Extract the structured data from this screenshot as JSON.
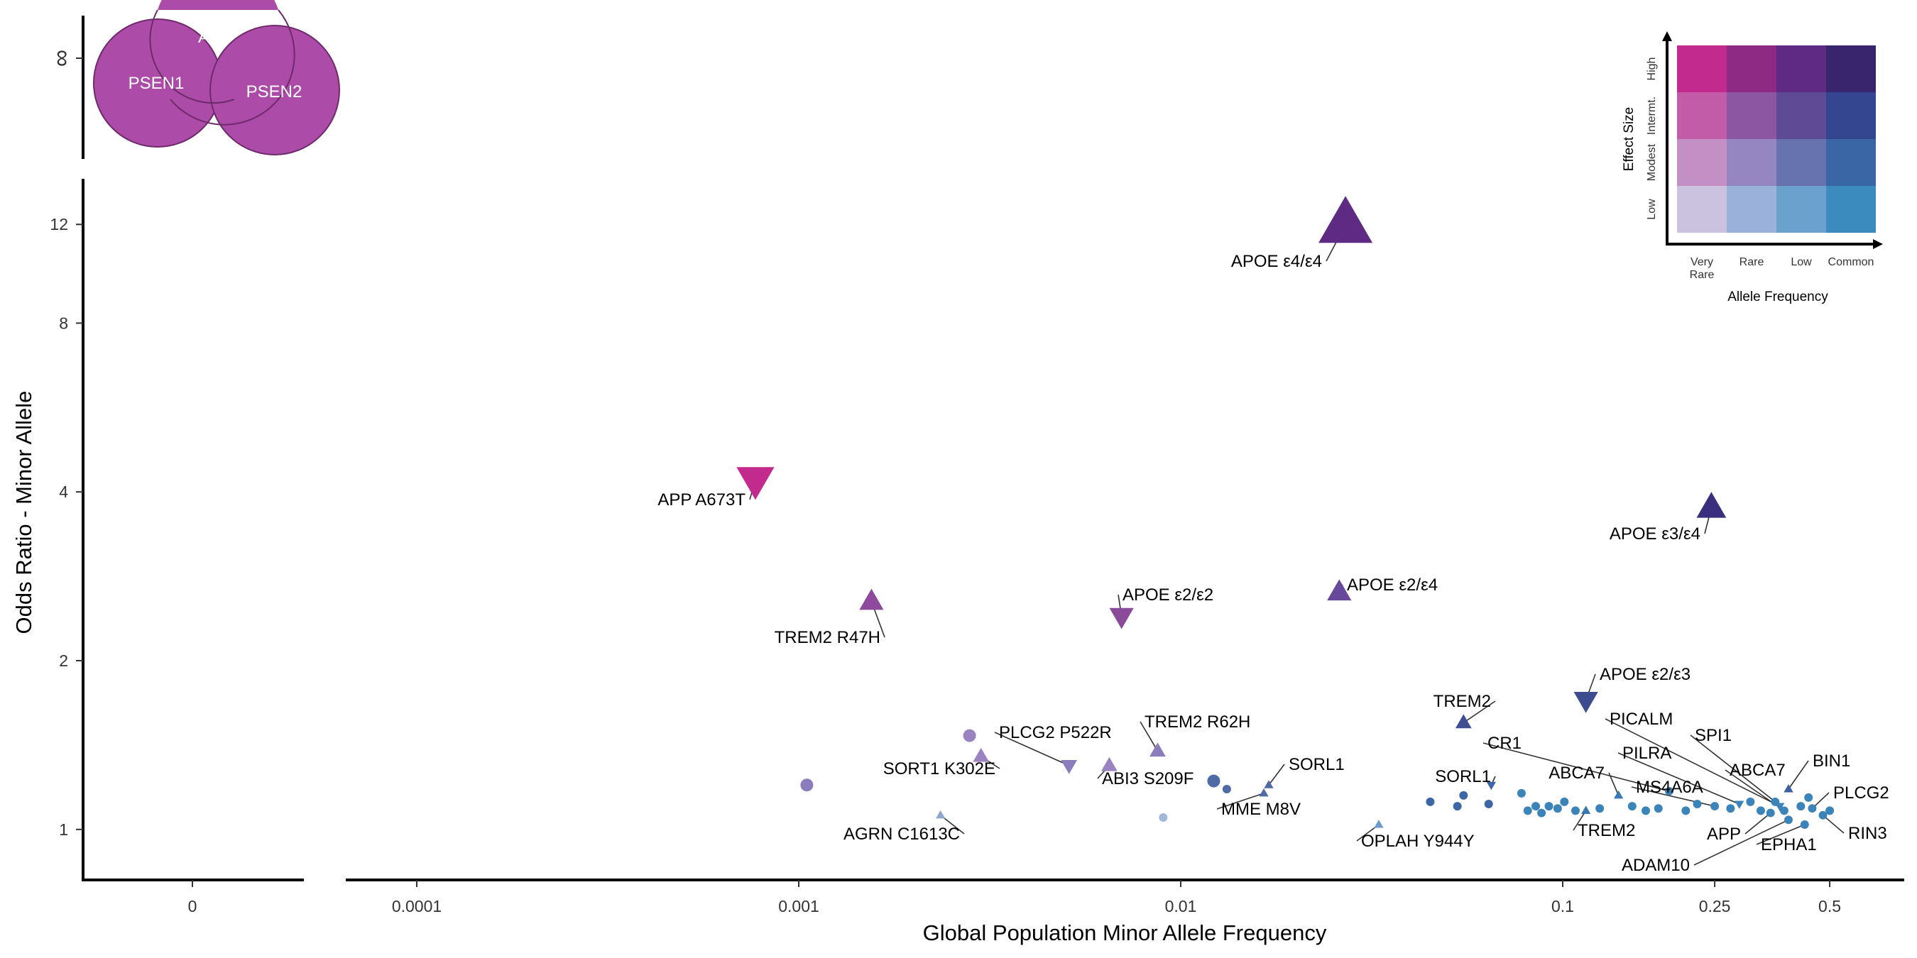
{
  "chart_data": {
    "type": "scatter",
    "xlabel": "Global Population Minor Allele Frequency",
    "ylabel": "Odds Ratio - Minor Allele",
    "x_scale": "log",
    "y_scale": "log",
    "x_zero_panel_tick": "0",
    "y_infinity_panel_tick": "∞",
    "xlim": [
      5e-05,
      0.65
    ],
    "ylim": [
      0.85,
      14
    ],
    "x_ticks": [
      {
        "value": 0.0001,
        "label": "0.0001"
      },
      {
        "value": 0.001,
        "label": "0.001"
      },
      {
        "value": 0.01,
        "label": "0.01"
      },
      {
        "value": 0.1,
        "label": "0.1"
      },
      {
        "value": 0.25,
        "label": "0.25"
      },
      {
        "value": 0.5,
        "label": "0.5"
      }
    ],
    "y_ticks": [
      {
        "value": 1,
        "label": "1"
      },
      {
        "value": 2,
        "label": "2"
      },
      {
        "value": 4,
        "label": "4"
      },
      {
        "value": 8,
        "label": "8"
      },
      {
        "value": 12,
        "label": "12"
      }
    ],
    "deterministic_genes": {
      "y": "∞",
      "x": "0",
      "genes": [
        "APP",
        "PSEN1",
        "PSEN2"
      ],
      "color": "#ac4ca8"
    },
    "labeled_points": [
      {
        "label": "APOE ε4/ε4",
        "x": 0.027,
        "y": 12.0,
        "shape": "triangle-up",
        "color": "#5e2a84",
        "size": 7
      },
      {
        "label": "APP A673T",
        "x": 0.00077,
        "y": 4.2,
        "shape": "triangle-down",
        "color": "#c22a8e",
        "size": 5
      },
      {
        "label": "APOE ε3/ε4",
        "x": 0.245,
        "y": 3.75,
        "shape": "triangle-up",
        "color": "#3a2f7e",
        "size": 4
      },
      {
        "label": "TREM2 R47H",
        "x": 0.00155,
        "y": 2.55,
        "shape": "triangle-up",
        "color": "#8e4b9e",
        "size": 3
      },
      {
        "label": "APOE ε2/ε2",
        "x": 0.007,
        "y": 2.4,
        "shape": "triangle-down",
        "color": "#8a4b9a",
        "size": 3
      },
      {
        "label": "APOE ε2/ε4",
        "x": 0.026,
        "y": 2.65,
        "shape": "triangle-up",
        "color": "#68489a",
        "size": 3
      },
      {
        "label": "APOE ε2/ε3",
        "x": 0.115,
        "y": 1.7,
        "shape": "triangle-down",
        "color": "#3d4c8f",
        "size": 3
      },
      {
        "label": "TREM2",
        "x": 0.055,
        "y": 1.55,
        "shape": "triangle-up",
        "color": "#3f4f93",
        "size": 2
      },
      {
        "label": "PLCG2 P522R",
        "x": 0.0051,
        "y": 1.3,
        "shape": "triangle-down",
        "color": "#8b7dbd",
        "size": 2
      },
      {
        "label": "TREM2 R62H",
        "x": 0.0087,
        "y": 1.38,
        "shape": "triangle-up",
        "color": "#8b7dbd",
        "size": 2
      },
      {
        "label": "SORT1 K302E",
        "x": 0.003,
        "y": 1.35,
        "shape": "triangle-up",
        "color": "#9b83c2",
        "size": 2
      },
      {
        "label": "ABI3 S209F",
        "x": 0.0065,
        "y": 1.3,
        "shape": "triangle-up",
        "color": "#9b83c2",
        "size": 2
      },
      {
        "label": "SORL1",
        "x": 0.017,
        "y": 1.2,
        "shape": "triangle-up",
        "color": "#4f6aa4",
        "size": 1
      },
      {
        "label": "MME M8V",
        "x": 0.0165,
        "y": 1.16,
        "shape": "triangle-up",
        "color": "#4f6aa4",
        "size": 1
      },
      {
        "label": "AGRN C1613C",
        "x": 0.00235,
        "y": 1.06,
        "shape": "triangle-up",
        "color": "#8fa7d0",
        "size": 1
      },
      {
        "label": "OPLAH Y944Y",
        "x": 0.033,
        "y": 1.02,
        "shape": "triangle-up",
        "color": "#6e9acb",
        "size": 1
      },
      {
        "label": "SORL1",
        "x": 0.065,
        "y": 1.2,
        "shape": "triangle-down",
        "color": "#3d66a6",
        "size": 1
      },
      {
        "label": "CR1",
        "x": 0.19,
        "y": 1.17,
        "shape": "circle",
        "color": "#3b84b9",
        "size": 1
      },
      {
        "label": "ABCA7",
        "x": 0.14,
        "y": 1.15,
        "shape": "triangle-up",
        "color": "#3a78b3",
        "size": 1
      },
      {
        "label": "TREM2",
        "x": 0.115,
        "y": 1.08,
        "shape": "triangle-up",
        "color": "#3a78b3",
        "size": 1
      },
      {
        "label": "MS4A6A",
        "x": 0.25,
        "y": 1.1,
        "shape": "circle",
        "color": "#3b84b9",
        "size": 1
      },
      {
        "label": "PICALM",
        "x": 0.37,
        "y": 1.1,
        "shape": "triangle-down",
        "color": "#3b84b9",
        "size": 1
      },
      {
        "label": "PILRA",
        "x": 0.29,
        "y": 1.11,
        "shape": "triangle-down",
        "color": "#3b84b9",
        "size": 1
      },
      {
        "label": "SPI1",
        "x": 0.36,
        "y": 1.12,
        "shape": "circle",
        "color": "#3b84b9",
        "size": 1
      },
      {
        "label": "ABCA7",
        "x": 0.38,
        "y": 1.08,
        "shape": "circle",
        "color": "#3b84b9",
        "size": 1
      },
      {
        "label": "BIN1",
        "x": 0.39,
        "y": 1.18,
        "shape": "triangle-up",
        "color": "#3b5fa0",
        "size": 1
      },
      {
        "label": "PLCG2",
        "x": 0.45,
        "y": 1.09,
        "shape": "circle",
        "color": "#3b84b9",
        "size": 1
      },
      {
        "label": "RIN3",
        "x": 0.48,
        "y": 1.06,
        "shape": "circle",
        "color": "#3b84b9",
        "size": 1
      },
      {
        "label": "EPHA1",
        "x": 0.43,
        "y": 1.02,
        "shape": "circle",
        "color": "#3b84b9",
        "size": 1
      },
      {
        "label": "APP",
        "x": 0.35,
        "y": 1.07,
        "shape": "circle",
        "color": "#3b84b9",
        "size": 1
      },
      {
        "label": "ADAM10",
        "x": 0.39,
        "y": 1.04,
        "shape": "circle",
        "color": "#3b84b9",
        "size": 1
      }
    ],
    "unlabeled_points": [
      {
        "x": 0.00105,
        "y": 1.2,
        "color": "#8b7dbd",
        "size": 2
      },
      {
        "x": 0.0028,
        "y": 1.47,
        "color": "#9b83c2",
        "size": 2
      },
      {
        "x": 0.0122,
        "y": 1.22,
        "color": "#4f6aa4",
        "size": 2
      },
      {
        "x": 0.0132,
        "y": 1.18,
        "color": "#4f6aa4",
        "size": 1
      },
      {
        "x": 0.009,
        "y": 1.05,
        "color": "#a3b7da",
        "size": 1
      },
      {
        "x": 0.045,
        "y": 1.12,
        "color": "#3d66a6",
        "size": 1
      },
      {
        "x": 0.053,
        "y": 1.1,
        "color": "#3d66a6",
        "size": 1
      },
      {
        "x": 0.055,
        "y": 1.15,
        "color": "#3d66a6",
        "size": 1
      },
      {
        "x": 0.064,
        "y": 1.11,
        "color": "#3d66a6",
        "size": 1
      },
      {
        "x": 0.078,
        "y": 1.16,
        "color": "#3b84b9",
        "size": 1
      },
      {
        "x": 0.081,
        "y": 1.08,
        "color": "#3b84b9",
        "size": 1
      },
      {
        "x": 0.085,
        "y": 1.1,
        "color": "#3b84b9",
        "size": 1
      },
      {
        "x": 0.088,
        "y": 1.07,
        "color": "#3b84b9",
        "size": 1
      },
      {
        "x": 0.092,
        "y": 1.1,
        "color": "#3b84b9",
        "size": 1
      },
      {
        "x": 0.097,
        "y": 1.09,
        "color": "#3b84b9",
        "size": 1
      },
      {
        "x": 0.101,
        "y": 1.12,
        "color": "#3b84b9",
        "size": 1
      },
      {
        "x": 0.108,
        "y": 1.08,
        "color": "#3b84b9",
        "size": 1
      },
      {
        "x": 0.125,
        "y": 1.09,
        "color": "#3b84b9",
        "size": 1
      },
      {
        "x": 0.152,
        "y": 1.1,
        "color": "#3b84b9",
        "size": 1
      },
      {
        "x": 0.165,
        "y": 1.08,
        "color": "#3b84b9",
        "size": 1
      },
      {
        "x": 0.178,
        "y": 1.09,
        "color": "#3b84b9",
        "size": 1
      },
      {
        "x": 0.21,
        "y": 1.08,
        "color": "#3b84b9",
        "size": 1
      },
      {
        "x": 0.225,
        "y": 1.11,
        "color": "#3b84b9",
        "size": 1
      },
      {
        "x": 0.275,
        "y": 1.09,
        "color": "#3b84b9",
        "size": 1
      },
      {
        "x": 0.31,
        "y": 1.12,
        "color": "#3b84b9",
        "size": 1
      },
      {
        "x": 0.33,
        "y": 1.08,
        "color": "#3b84b9",
        "size": 1
      },
      {
        "x": 0.42,
        "y": 1.1,
        "color": "#3b84b9",
        "size": 1
      },
      {
        "x": 0.44,
        "y": 1.14,
        "color": "#3b84b9",
        "size": 1
      },
      {
        "x": 0.5,
        "y": 1.08,
        "color": "#3b84b9",
        "size": 1
      }
    ],
    "legend": {
      "placement": "top-right",
      "y_title": "Effect Size",
      "x_title": "Allele Frequency",
      "y_levels": [
        "Low",
        "Modest",
        "Intermt.",
        "High"
      ],
      "x_levels": [
        "Very Rare",
        "Rare",
        "Low",
        "Common"
      ],
      "grid_colors_high_to_low": [
        [
          "#c22a8e",
          "#8e2a83",
          "#5e2a84",
          "#38256e"
        ],
        [
          "#c25ca8",
          "#8d56a2",
          "#5f4a96",
          "#34468f"
        ],
        [
          "#c38fc5",
          "#9585c0",
          "#6673ae",
          "#3a66a6"
        ],
        [
          "#cac2de",
          "#9ab1d9",
          "#6ba2cd",
          "#3b8bbf"
        ]
      ]
    }
  }
}
